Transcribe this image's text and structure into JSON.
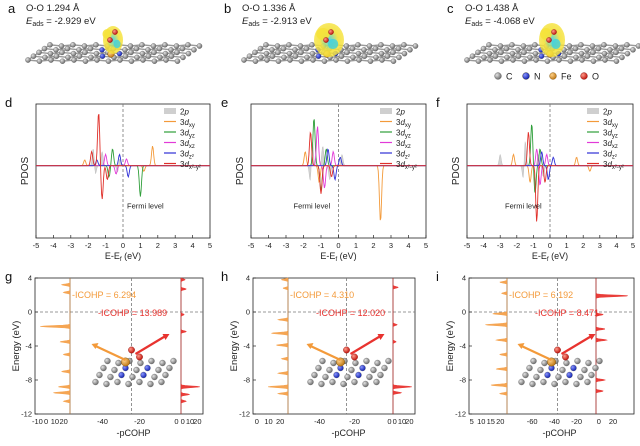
{
  "structures": [
    {
      "letter": "a",
      "info": "O-O 1.294 Å",
      "eads_label": "E",
      "eads_sub": "ads",
      "eads_value": "= -2.929 eV"
    },
    {
      "letter": "b",
      "info": "O-O 1.336 Å",
      "eads_label": "E",
      "eads_sub": "ads",
      "eads_value": "= -2.913 eV"
    },
    {
      "letter": "c",
      "info": "O-O 1.438 Å",
      "eads_label": "E",
      "eads_sub": "ads",
      "eads_value": "= -4.068 eV"
    }
  ],
  "atom_legend": [
    {
      "label": "C",
      "color": "#a0a0a0",
      "icon": "gray-sphere"
    },
    {
      "label": "N",
      "color": "#1f2fd6",
      "icon": "blue-sphere"
    },
    {
      "label": "Fe",
      "color": "#e6a23c",
      "icon": "orange-sphere"
    },
    {
      "label": "O",
      "color": "#e0302a",
      "icon": "red-sphere"
    }
  ],
  "colors": {
    "carbon": "#8c8c8c",
    "nitrogen": "#1f2fd6",
    "iron": "#d9922c",
    "oxygen": "#e0302a",
    "isosurface_yellow": "#f5e23a",
    "isosurface_cyan": "#3fd1e0",
    "grid_dash": "#888888",
    "cohp_icohp_left": "#f5a14a",
    "cohp_icohp_right": "#e8332f"
  },
  "chart_data": [
    {
      "panel": "d",
      "type": "line",
      "ylabel": "PDOS",
      "xlabel": "E-E",
      "xlabel_sub": "f",
      "xlabel_unit": " (eV)",
      "xlim": [
        -5,
        5
      ],
      "xticks": [
        "-5",
        "-4",
        "-3",
        "-2",
        "-1",
        "0",
        "1",
        "2",
        "3",
        "4",
        "5"
      ],
      "annotation": "Fermi level",
      "legend": [
        {
          "label": "2",
          "label_italic": "p",
          "sub": "",
          "color": "#c8c8c8",
          "kind": "fill"
        },
        {
          "label": "3",
          "label_italic": "d",
          "sub": "xy",
          "color": "#f39a3a",
          "kind": "line"
        },
        {
          "label": "3",
          "label_italic": "d",
          "sub": "yz",
          "color": "#2f9e3a",
          "kind": "line"
        },
        {
          "label": "3",
          "label_italic": "d",
          "sub": "xz",
          "color": "#e23ad8",
          "kind": "line"
        },
        {
          "label": "3",
          "label_italic": "d",
          "sub": "z²",
          "color": "#2f2fd6",
          "kind": "line"
        },
        {
          "label": "3",
          "label_italic": "d",
          "sub": "x²-y²",
          "color": "#e0302a",
          "kind": "line"
        }
      ],
      "series": [
        {
          "name": "2p",
          "peaks": [
            [
              -1.7,
              0.35
            ],
            [
              -1.2,
              0.25
            ],
            [
              -0.2,
              0.15
            ],
            [
              -1.6,
              -0.2
            ],
            [
              -0.3,
              -0.15
            ]
          ]
        },
        {
          "name": "3dxy",
          "peaks": [
            [
              1.7,
              0.35
            ],
            [
              -2.2,
              0.1
            ],
            [
              1.2,
              -0.1
            ]
          ]
        },
        {
          "name": "3dyz",
          "peaks": [
            [
              -0.6,
              0.3
            ],
            [
              -0.8,
              -0.2
            ],
            [
              1.0,
              -0.55
            ]
          ]
        },
        {
          "name": "3dxz",
          "peaks": [
            [
              -1.0,
              0.2
            ],
            [
              0.2,
              0.12
            ],
            [
              -0.4,
              -0.15
            ]
          ]
        },
        {
          "name": "3dz2",
          "peaks": [
            [
              -0.2,
              0.2
            ],
            [
              -1.5,
              0.1
            ],
            [
              0.3,
              -0.2
            ]
          ]
        },
        {
          "name": "3dx2y2",
          "peaks": [
            [
              -1.4,
              0.95
            ],
            [
              -1.8,
              0.25
            ],
            [
              -1.2,
              -0.6
            ],
            [
              -0.9,
              -0.25
            ]
          ]
        }
      ]
    },
    {
      "panel": "e",
      "type": "line",
      "ylabel": "PDOS",
      "xlabel": "E-E",
      "xlabel_sub": "f",
      "xlabel_unit": " (eV)",
      "xlim": [
        -5,
        5
      ],
      "xticks": [
        "-5",
        "-4",
        "-3",
        "-2",
        "-1",
        "0",
        "1",
        "2",
        "3",
        "4",
        "5"
      ],
      "annotation": "Fermi level",
      "legend": [
        {
          "label": "2",
          "label_italic": "p",
          "sub": "",
          "color": "#c8c8c8",
          "kind": "fill"
        },
        {
          "label": "3",
          "label_italic": "d",
          "sub": "xy",
          "color": "#f39a3a",
          "kind": "line"
        },
        {
          "label": "3",
          "label_italic": "d",
          "sub": "yz",
          "color": "#2f9e3a",
          "kind": "line"
        },
        {
          "label": "3",
          "label_italic": "d",
          "sub": "xz",
          "color": "#e23ad8",
          "kind": "line"
        },
        {
          "label": "3",
          "label_italic": "d",
          "sub": "z²",
          "color": "#2f2fd6",
          "kind": "line"
        },
        {
          "label": "3",
          "label_italic": "d",
          "sub": "x²-y²",
          "color": "#e0302a",
          "kind": "line"
        }
      ],
      "series": [
        {
          "name": "2p",
          "peaks": [
            [
              -1.5,
              0.5
            ],
            [
              -0.9,
              0.35
            ],
            [
              0.2,
              0.2
            ],
            [
              -1.6,
              -0.35
            ],
            [
              -0.5,
              -0.25
            ]
          ]
        },
        {
          "name": "3dxy",
          "peaks": [
            [
              -1.9,
              0.25
            ],
            [
              2.4,
              -1.0
            ],
            [
              -1.1,
              -0.3
            ]
          ]
        },
        {
          "name": "3dyz",
          "peaks": [
            [
              -1.4,
              0.85
            ],
            [
              -0.7,
              0.3
            ],
            [
              -1.0,
              -0.45
            ]
          ]
        },
        {
          "name": "3dxz",
          "peaks": [
            [
              -1.2,
              0.7
            ],
            [
              -0.3,
              0.25
            ],
            [
              -0.8,
              -0.4
            ]
          ]
        },
        {
          "name": "3dz2",
          "peaks": [
            [
              -0.6,
              0.3
            ],
            [
              0.1,
              0.15
            ],
            [
              -0.2,
              -0.25
            ]
          ]
        },
        {
          "name": "3dx2y2",
          "peaks": [
            [
              -1.6,
              0.6
            ],
            [
              -1.0,
              -0.5
            ],
            [
              -0.4,
              -0.2
            ]
          ]
        }
      ]
    },
    {
      "panel": "f",
      "type": "line",
      "ylabel": "PDOS",
      "xlabel": "E-E",
      "xlabel_sub": "f",
      "xlabel_unit": " (eV)",
      "xlim": [
        -5,
        5
      ],
      "xticks": [
        "-5",
        "-4",
        "-3",
        "-2",
        "-1",
        "0",
        "1",
        "2",
        "3",
        "4",
        "5"
      ],
      "annotation": "Fermi level",
      "legend": [
        {
          "label": "2",
          "label_italic": "p",
          "sub": "",
          "color": "#c8c8c8",
          "kind": "fill"
        },
        {
          "label": "3",
          "label_italic": "d",
          "sub": "xy",
          "color": "#f39a3a",
          "kind": "line"
        },
        {
          "label": "3",
          "label_italic": "d",
          "sub": "yz",
          "color": "#2f9e3a",
          "kind": "line"
        },
        {
          "label": "3",
          "label_italic": "d",
          "sub": "xz",
          "color": "#e23ad8",
          "kind": "line"
        },
        {
          "label": "3",
          "label_italic": "d",
          "sub": "z²",
          "color": "#2f2fd6",
          "kind": "line"
        },
        {
          "label": "3",
          "label_italic": "d",
          "sub": "x²-y²",
          "color": "#e0302a",
          "kind": "line"
        }
      ],
      "series": [
        {
          "name": "2p",
          "peaks": [
            [
              -1.5,
              0.5
            ],
            [
              -3.0,
              0.2
            ],
            [
              -0.7,
              0.2
            ],
            [
              -1.6,
              -0.3
            ],
            [
              -0.4,
              -0.2
            ]
          ]
        },
        {
          "name": "3dxy",
          "peaks": [
            [
              -2.2,
              0.2
            ],
            [
              1.6,
              0.15
            ],
            [
              -1.2,
              -0.3
            ],
            [
              2.4,
              -0.1
            ]
          ]
        },
        {
          "name": "3dyz",
          "peaks": [
            [
              -1.1,
              0.75
            ],
            [
              -0.6,
              0.3
            ],
            [
              -0.9,
              -0.5
            ]
          ]
        },
        {
          "name": "3dxz",
          "peaks": [
            [
              -0.8,
              0.3
            ],
            [
              -0.2,
              0.2
            ],
            [
              -0.6,
              -0.35
            ]
          ]
        },
        {
          "name": "3dz2",
          "peaks": [
            [
              -0.5,
              0.25
            ],
            [
              0.2,
              0.15
            ],
            [
              -0.1,
              -0.25
            ]
          ]
        },
        {
          "name": "3dx2y2",
          "peaks": [
            [
              -1.3,
              0.6
            ],
            [
              -0.8,
              -1.0
            ],
            [
              -0.3,
              -0.3
            ]
          ]
        }
      ]
    },
    {
      "panel": "g",
      "type": "area",
      "ylabel": "Energy (eV)",
      "xlabel": "-pCOHP",
      "ylim": [
        -12,
        4
      ],
      "yticks": [
        "4",
        "0",
        "-4",
        "-8",
        "-12"
      ],
      "left_xticks": [
        "-10",
        "0",
        "10",
        "20"
      ],
      "left_xlim": [
        -15,
        25
      ],
      "inset_xticks": [
        "-40",
        "-20",
        "0"
      ],
      "inset_xlim": [
        -55,
        5
      ],
      "right_xticks": [
        "0",
        "10",
        "20"
      ],
      "right_xlim": [
        -3,
        22
      ],
      "icohp_left": "-ICOHP = 6.294",
      "icohp_right": "-ICOHP = 13.989",
      "series": [
        {
          "name": "left",
          "color": "#f5a14a",
          "peaks": [
            [
              3.2,
              5
            ],
            [
              2.3,
              4
            ],
            [
              -1.7,
              18
            ],
            [
              -3.5,
              6
            ],
            [
              -5.0,
              4
            ],
            [
              -7.0,
              5
            ],
            [
              -8.8,
              7
            ],
            [
              -9.5,
              10
            ],
            [
              -10.5,
              4
            ]
          ]
        },
        {
          "name": "right",
          "color": "#e8332f",
          "peaks": [
            [
              2.7,
              5
            ],
            [
              3.8,
              4
            ],
            [
              -0.3,
              3
            ],
            [
              -2.3,
              5
            ],
            [
              -8.8,
              18
            ],
            [
              -9.7,
              8
            ],
            [
              -10.5,
              5
            ]
          ]
        }
      ]
    },
    {
      "panel": "h",
      "type": "area",
      "ylabel": "Energy (eV)",
      "xlabel": "-pCOHP",
      "ylim": [
        -12,
        4
      ],
      "yticks": [
        "4",
        "0",
        "-4",
        "-8",
        "-12"
      ],
      "left_xticks": [
        "0",
        "10",
        "20"
      ],
      "left_xlim": [
        -5,
        28
      ],
      "inset_xticks": [
        "-40",
        "-20",
        "0"
      ],
      "inset_xlim": [
        -55,
        5
      ],
      "right_xticks": [
        "0",
        "10",
        "20"
      ],
      "right_xlim": [
        -3,
        22
      ],
      "icohp_left": "-ICOHP = 4.310",
      "icohp_right": "-ICOHP = 12.020",
      "series": [
        {
          "name": "left",
          "color": "#f5a14a",
          "peaks": [
            [
              3.8,
              4
            ],
            [
              2.8,
              3
            ],
            [
              -0.9,
              6
            ],
            [
              -2.5,
              10
            ],
            [
              -3.9,
              7
            ],
            [
              -5.5,
              4
            ],
            [
              -7.2,
              6
            ],
            [
              -8.8,
              12
            ],
            [
              -9.6,
              6
            ]
          ]
        },
        {
          "name": "right",
          "color": "#e8332f",
          "peaks": [
            [
              2.9,
              5
            ],
            [
              -1.5,
              4
            ],
            [
              -3.5,
              3
            ],
            [
              -8.8,
              18
            ],
            [
              -9.5,
              8
            ]
          ]
        }
      ]
    },
    {
      "panel": "i",
      "type": "area",
      "ylabel": "Energy (eV)",
      "xlabel": "-pCOHP",
      "ylim": [
        -12,
        4
      ],
      "yticks": [
        "4",
        "0",
        "-4",
        "-8",
        "-12"
      ],
      "left_xticks": [
        "5",
        "10",
        "15",
        "20"
      ],
      "left_xlim": [
        2,
        22
      ],
      "inset_xticks": [
        "-60",
        "-40",
        "-20",
        "0"
      ],
      "inset_xlim": [
        -75,
        5
      ],
      "right_xticks": [
        "20"
      ],
      "right_xlim": [
        -25,
        25
      ],
      "icohp_left": "-ICOHP = 6.192",
      "icohp_right": "-ICOHP = 8.471",
      "series": [
        {
          "name": "left",
          "color": "#f5a14a",
          "peaks": [
            [
              3.5,
              4
            ],
            [
              2.2,
              3
            ],
            [
              -0.2,
              8
            ],
            [
              -1.5,
              12
            ],
            [
              -3.3,
              6
            ],
            [
              -5.0,
              4
            ],
            [
              -6.7,
              6
            ],
            [
              -8.6,
              9
            ],
            [
              -9.6,
              4
            ]
          ]
        },
        {
          "name": "right",
          "color": "#e8332f",
          "peaks": [
            [
              1.9,
              18
            ],
            [
              -0.3,
              4
            ],
            [
              -2.0,
              5
            ],
            [
              -3.3,
              6
            ],
            [
              -8.0,
              5
            ],
            [
              -9.3,
              4
            ]
          ]
        }
      ]
    }
  ]
}
